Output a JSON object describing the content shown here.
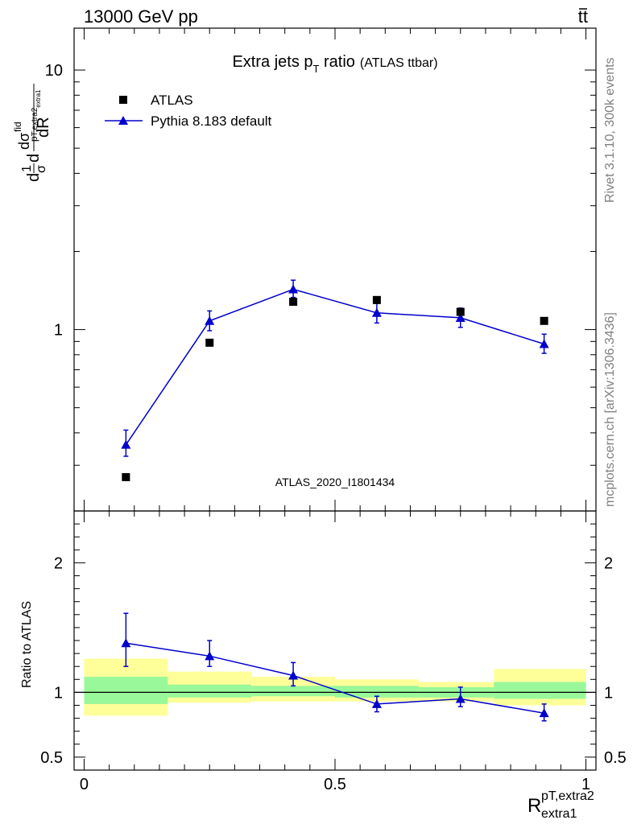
{
  "header": {
    "energy": "13000 GeV pp",
    "process_t": "t",
    "process_tbar": "t"
  },
  "side_text": {
    "rivet": "Rivet 3.1.10,  300k events",
    "mcplots": "mcplots.cern.ch [arXiv:1306.3436]"
  },
  "watermark": "ATLAS_2020_I1801434",
  "colors": {
    "mc": "#0000cc",
    "data": "#000000",
    "band_inner": "#99f899",
    "band_outer": "#ffff99"
  },
  "chart_data": [
    {
      "type": "scatter",
      "title": "Extra jets p",
      "title_sub": "T",
      "title_tail": " ratio",
      "title_note": "(ATLAS ttbar)",
      "ylabel_parts": [
        "d",
        "1",
        "σ",
        "d",
        "d",
        "σ",
        "fid",
        "p",
        "T,extra2",
        "extra1",
        "dR"
      ],
      "xlim": [
        -0.02,
        1.02
      ],
      "ylim": [
        0.2,
        14.5
      ],
      "yscale": "log",
      "ytick_labels": [
        {
          "v": 1,
          "label": "1"
        },
        {
          "v": 10,
          "label": "10"
        }
      ],
      "legend": [
        "ATLAS",
        "Pythia 8.183 default"
      ],
      "legend_position": "top-left",
      "series": [
        {
          "name": "ATLAS",
          "marker": "square",
          "x": [
            0.0833,
            0.25,
            0.4167,
            0.5833,
            0.75,
            0.9167
          ],
          "y": [
            0.27,
            0.89,
            1.28,
            1.3,
            1.17,
            1.08
          ]
        },
        {
          "name": "Pythia 8.183 default",
          "marker": "triangle",
          "x": [
            0.0833,
            0.25,
            0.4167,
            0.5833,
            0.75,
            0.9167
          ],
          "y": [
            0.36,
            1.08,
            1.43,
            1.16,
            1.11,
            0.88
          ],
          "yerr_low": [
            0.035,
            0.09,
            0.1,
            0.1,
            0.09,
            0.07
          ],
          "yerr_high": [
            0.05,
            0.1,
            0.12,
            0.1,
            0.1,
            0.08
          ]
        }
      ]
    },
    {
      "type": "scatter",
      "ylabel": "Ratio to ATLAS",
      "xlabel_main": "R",
      "xlabel_sup": "pT,extra2",
      "xlabel_sub": "extra1",
      "xlim": [
        -0.02,
        1.02
      ],
      "ylim": [
        0.4,
        2.4
      ],
      "xtick_labels": [
        {
          "v": 0,
          "label": "0"
        },
        {
          "v": 0.5,
          "label": "0.5"
        },
        {
          "v": 1,
          "label": "1"
        }
      ],
      "ytick_labels": [
        {
          "v": 0.5,
          "label": "0.5"
        },
        {
          "v": 1,
          "label": "1"
        },
        {
          "v": 2,
          "label": "2"
        }
      ],
      "bands": [
        {
          "x0": 0.0,
          "x1": 0.1667,
          "inner": [
            0.91,
            1.12
          ],
          "outer": [
            0.82,
            1.26
          ]
        },
        {
          "x0": 0.1667,
          "x1": 0.3333,
          "inner": [
            0.96,
            1.06
          ],
          "outer": [
            0.92,
            1.16
          ]
        },
        {
          "x0": 0.3333,
          "x1": 0.5,
          "inner": [
            0.97,
            1.05
          ],
          "outer": [
            0.93,
            1.12
          ]
        },
        {
          "x0": 0.5,
          "x1": 0.6667,
          "inner": [
            0.96,
            1.05
          ],
          "outer": [
            0.93,
            1.1
          ]
        },
        {
          "x0": 0.6667,
          "x1": 0.8167,
          "inner": [
            0.96,
            1.04
          ],
          "outer": [
            0.93,
            1.08
          ]
        },
        {
          "x0": 0.8167,
          "x1": 1.0,
          "inner": [
            0.95,
            1.08
          ],
          "outer": [
            0.9,
            1.18
          ]
        }
      ],
      "series": [
        {
          "name": "Pythia 8.183 default",
          "marker": "triangle",
          "x": [
            0.0833,
            0.25,
            0.4167,
            0.5833,
            0.75,
            0.9167
          ],
          "y": [
            1.38,
            1.28,
            1.13,
            0.91,
            0.95,
            0.84
          ],
          "yerr_low": [
            0.18,
            0.08,
            0.08,
            0.06,
            0.06,
            0.06
          ],
          "yerr_high": [
            0.23,
            0.12,
            0.1,
            0.06,
            0.09,
            0.07
          ]
        }
      ]
    }
  ]
}
